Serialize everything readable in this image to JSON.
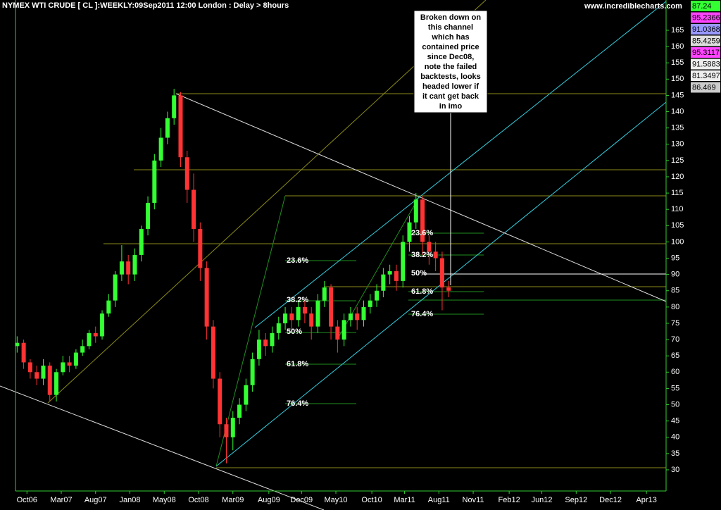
{
  "chart_data": {
    "type": "candlestick",
    "title": "NYMEX WTI CRUDE [ CL ]:WEEKLY:09Sep2011 12:00 London  : Delay > 8hours",
    "source": "www.incrediblecharts.com",
    "up_color": "#33ff33",
    "down_color": "#ff3333",
    "x": [
      0,
      4,
      8,
      12,
      16,
      20,
      24,
      28,
      32,
      36,
      40,
      44,
      48,
      52,
      56,
      60,
      64,
      68,
      72,
      76,
      80,
      84,
      88,
      92,
      96,
      100,
      104,
      108,
      112,
      116,
      120,
      124,
      128,
      132,
      136,
      140,
      144,
      148,
      152,
      156,
      160,
      164,
      168,
      172,
      176,
      180,
      184,
      188,
      192,
      196,
      200,
      204,
      208,
      212,
      216,
      220,
      224,
      228,
      232,
      236,
      240,
      244,
      248,
      252,
      256,
      260,
      264
    ],
    "open": [
      68,
      69,
      63,
      60,
      58,
      62,
      53,
      60,
      63,
      62,
      66,
      68,
      72,
      71,
      78,
      82,
      90,
      94,
      90,
      96,
      104,
      112,
      125,
      132,
      138,
      145,
      126,
      116,
      104,
      92,
      74,
      58,
      44,
      40,
      46,
      50,
      56,
      64,
      70,
      68,
      72,
      75,
      78,
      76,
      80,
      78,
      74,
      82,
      86,
      74,
      70,
      76,
      78,
      76,
      80,
      82,
      85,
      90,
      91,
      88,
      100,
      106,
      113,
      100,
      97,
      95,
      86
    ],
    "high": [
      71,
      70,
      64,
      62,
      64,
      63,
      61,
      65,
      65,
      67,
      70,
      73,
      74,
      79,
      84,
      91,
      99,
      96,
      98,
      105,
      114,
      127,
      135,
      140,
      147,
      146,
      128,
      121,
      106,
      94,
      76,
      60,
      46,
      48,
      52,
      58,
      66,
      73,
      72,
      74,
      77,
      80,
      80,
      82,
      82,
      80,
      84,
      88,
      87,
      76,
      78,
      80,
      80,
      82,
      84,
      87,
      92,
      93,
      93,
      102,
      108,
      115,
      114,
      102,
      100,
      97,
      88
    ],
    "low": [
      66,
      61,
      58,
      56,
      56,
      51,
      51,
      59,
      60,
      61,
      65,
      67,
      69,
      70,
      77,
      80,
      88,
      87,
      88,
      94,
      102,
      110,
      123,
      130,
      136,
      123,
      112,
      100,
      88,
      70,
      55,
      40,
      32,
      36,
      44,
      48,
      54,
      62,
      65,
      66,
      70,
      73,
      73,
      74,
      75,
      70,
      72,
      80,
      70,
      66,
      68,
      74,
      73,
      74,
      78,
      80,
      83,
      87,
      85,
      86,
      97,
      104,
      96,
      93,
      91,
      79,
      83
    ],
    "close": [
      69,
      63,
      60,
      58,
      62,
      53,
      60,
      63,
      62,
      66,
      68,
      72,
      71,
      78,
      82,
      90,
      94,
      90,
      96,
      104,
      112,
      125,
      132,
      138,
      145,
      126,
      116,
      104,
      92,
      74,
      58,
      44,
      40,
      46,
      50,
      56,
      64,
      70,
      68,
      72,
      75,
      78,
      76,
      80,
      78,
      74,
      82,
      86,
      74,
      70,
      76,
      78,
      76,
      80,
      82,
      85,
      90,
      91,
      88,
      100,
      106,
      113,
      100,
      97,
      95,
      86,
      85
    ],
    "xlim": [
      -1,
      397
    ],
    "xticks": [
      {
        "value": 6,
        "label": "Oct06"
      },
      {
        "value": 27,
        "label": "Mar07"
      },
      {
        "value": 48,
        "label": "Aug07"
      },
      {
        "value": 69,
        "label": "Jan08"
      },
      {
        "value": 90,
        "label": "May08"
      },
      {
        "value": 111,
        "label": "Oct08"
      },
      {
        "value": 132,
        "label": "Mar09"
      },
      {
        "value": 154,
        "label": "Aug09"
      },
      {
        "value": 174,
        "label": "Dec09"
      },
      {
        "value": 195,
        "label": "May10"
      },
      {
        "value": 217,
        "label": "Oct10"
      },
      {
        "value": 237,
        "label": "Mar11"
      },
      {
        "value": 258,
        "label": "Aug11"
      },
      {
        "value": 279,
        "label": "Nov11"
      },
      {
        "value": 301,
        "label": "Feb12"
      },
      {
        "value": 321,
        "label": "Jun12"
      },
      {
        "value": 342,
        "label": "Sep12"
      },
      {
        "value": 363,
        "label": "Dec12"
      },
      {
        "value": 385,
        "label": "Apr13"
      }
    ],
    "ylim": [
      23.5,
      174.3
    ],
    "yticks": [
      30,
      35,
      40,
      45,
      50,
      55,
      60,
      65,
      70,
      75,
      80,
      85,
      90,
      95,
      100,
      105,
      110,
      115,
      120,
      125,
      130,
      135,
      140,
      145,
      150,
      155,
      160,
      165
    ],
    "annotation": [
      "Broken down on",
      "this channel",
      "which has",
      "contained price",
      "since Dec08,",
      "note the failed",
      "backtests, looks",
      "headed lower if",
      "it cant get back",
      "in imo"
    ],
    "fib_labels_left": [
      "23.6%",
      "38.2%",
      "50%",
      "61.8%",
      "76.4%"
    ],
    "fib_labels_right": [
      "23.6%",
      "38.2%",
      "50%",
      "61.8%",
      "76.4%"
    ],
    "price_tags": [
      {
        "label": "87.24",
        "color": "#33ff33"
      },
      {
        "label": "95.2366",
        "color": "#ff44ff"
      },
      {
        "label": "91.0368",
        "color": "#9999ff"
      },
      {
        "label": "85.4259",
        "color": "#dddddd"
      },
      {
        "label": "95.3117",
        "color": "#ff44ff"
      },
      {
        "label": "91.5883",
        "color": "#eeeeee"
      },
      {
        "label": "81.3497",
        "color": "#eeeeee"
      },
      {
        "label": "86.469",
        "color": "#cccccc"
      }
    ]
  }
}
